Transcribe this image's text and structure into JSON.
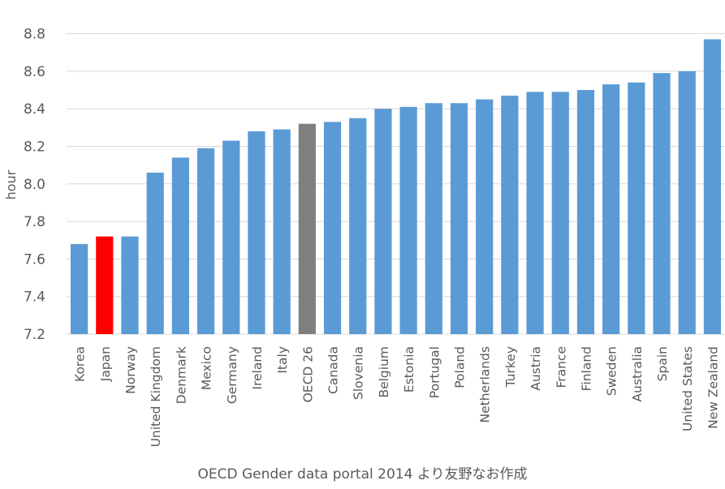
{
  "chart_data": {
    "type": "bar",
    "title": "",
    "xlabel": "",
    "ylabel": "hour",
    "ylim": [
      7.2,
      8.8
    ],
    "yticks": [
      "7.2",
      "7.4",
      "7.6",
      "7.8",
      "8.0",
      "8.2",
      "8.4",
      "8.6",
      "8.8"
    ],
    "grid": true,
    "categories": [
      "Korea",
      "Japan",
      "Norway",
      "United Kingdom",
      "Denmark",
      "Mexico",
      "Germany",
      "Ireland",
      "Italy",
      "OECD 26",
      "Canada",
      "Slovenia",
      "Belgium",
      "Estonia",
      "Portugal",
      "Poland",
      "Netherlands",
      "Turkey",
      "Austria",
      "France",
      "Finland",
      "Sweden",
      "Australia",
      "Spain",
      "United States",
      "New Zealand"
    ],
    "values": [
      7.68,
      7.72,
      7.72,
      8.06,
      8.14,
      8.19,
      8.23,
      8.28,
      8.29,
      8.32,
      8.33,
      8.35,
      8.4,
      8.41,
      8.43,
      8.43,
      8.45,
      8.47,
      8.49,
      8.49,
      8.5,
      8.53,
      8.54,
      8.59,
      8.6,
      8.77
    ],
    "colors": {
      "default": "#5b9bd5",
      "highlight": "#ff0000",
      "average": "#7f7f7f",
      "grid": "#d9d9d9",
      "text": "#595959"
    },
    "highlight_category": "Japan",
    "average_category": "OECD 26",
    "source_caption": "OECD Gender data portal 2014 より友野なお作成"
  }
}
